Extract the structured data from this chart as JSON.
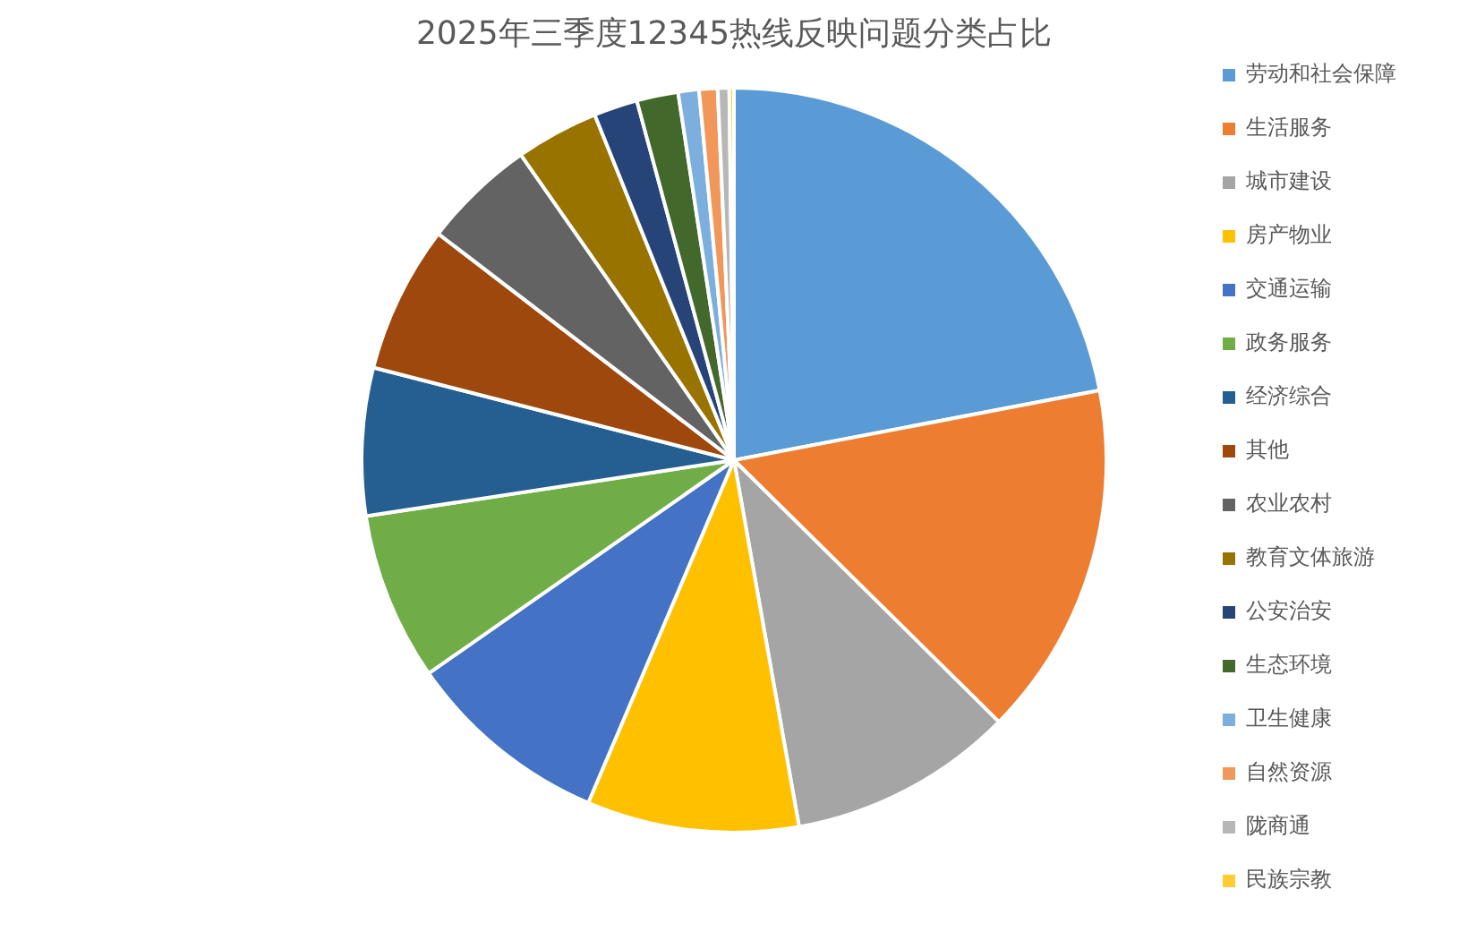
{
  "chart_data": {
    "type": "pie",
    "title": "2025年三季度12345热线反映问题分类占比",
    "categories": [
      "劳动和社会保障",
      "生活服务",
      "城市建设",
      "房产物业",
      "交通运输",
      "政务服务",
      "经济综合",
      "其他",
      "农业农村",
      "教育文体旅游",
      "公安治安",
      "生态环境",
      "卫生健康",
      "自然资源",
      "陇商通",
      "民族宗教"
    ],
    "values": [
      22.0,
      15.4,
      9.8,
      9.2,
      8.9,
      7.3,
      6.4,
      6.4,
      4.9,
      3.6,
      1.9,
      1.8,
      0.9,
      0.8,
      0.5,
      0.2
    ],
    "colors": [
      "#5b9bd5",
      "#ed7d31",
      "#a5a5a5",
      "#ffc000",
      "#4472c4",
      "#70ad47",
      "#255e91",
      "#9e480e",
      "#636363",
      "#997300",
      "#264478",
      "#43682b",
      "#7cafdd",
      "#f1975a",
      "#b7b7b7",
      "#ffcd33"
    ],
    "legend": "right"
  }
}
